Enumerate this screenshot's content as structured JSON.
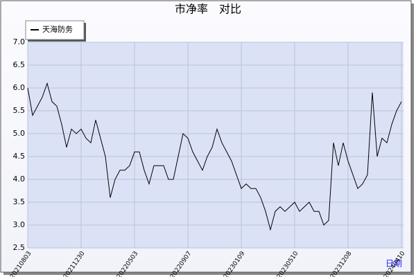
{
  "chart_data": {
    "type": "line",
    "title": "市净率　对比",
    "x_label": "日期",
    "categories": [
      "20210803",
      null,
      null,
      null,
      null,
      null,
      null,
      null,
      null,
      null,
      null,
      "20211230",
      null,
      null,
      null,
      null,
      null,
      null,
      null,
      null,
      null,
      null,
      "20220503",
      null,
      null,
      null,
      null,
      null,
      null,
      null,
      null,
      null,
      null,
      "20220907",
      null,
      null,
      null,
      null,
      null,
      null,
      null,
      null,
      null,
      null,
      "20230109",
      null,
      null,
      null,
      null,
      null,
      null,
      null,
      null,
      null,
      null,
      "20230510",
      null,
      null,
      null,
      null,
      null,
      null,
      null,
      null,
      null,
      null,
      "20231208",
      null,
      null,
      null,
      null,
      null,
      null,
      null,
      null,
      null,
      null,
      "20240410"
    ],
    "series": [
      {
        "name": "天海防务",
        "color": "#000000",
        "values": [
          6.0,
          5.4,
          5.6,
          5.8,
          6.1,
          5.7,
          5.6,
          5.2,
          4.7,
          5.1,
          5.0,
          5.1,
          4.9,
          4.8,
          5.3,
          4.9,
          4.5,
          3.6,
          4.0,
          4.2,
          4.2,
          4.3,
          4.6,
          4.6,
          4.2,
          3.9,
          4.3,
          4.3,
          4.3,
          4.0,
          4.0,
          4.5,
          5.0,
          4.9,
          4.6,
          4.4,
          4.2,
          4.5,
          4.7,
          5.1,
          4.8,
          4.6,
          4.4,
          4.1,
          3.8,
          3.9,
          3.8,
          3.8,
          3.6,
          3.3,
          2.9,
          3.3,
          3.4,
          3.3,
          3.4,
          3.5,
          3.3,
          3.4,
          3.5,
          3.3,
          3.3,
          3.0,
          3.1,
          4.8,
          4.3,
          4.8,
          4.4,
          4.1,
          3.8,
          3.9,
          4.1,
          5.9,
          4.5,
          4.9,
          4.8,
          5.2,
          5.5,
          5.7
        ]
      }
    ],
    "ylim": [
      2.5,
      7.0
    ],
    "yticks": [
      2.5,
      {
        "value": 3,
        "label": "3.0"
      },
      3.5,
      {
        "value": 4,
        "label": "4.0"
      },
      4.5,
      {
        "value": 5,
        "label": "5.0"
      },
      5.5,
      {
        "value": 6,
        "label": "6.0"
      },
      6.5,
      {
        "value": 7,
        "label": "7.0"
      }
    ],
    "grid": true,
    "legend": "top-left"
  }
}
